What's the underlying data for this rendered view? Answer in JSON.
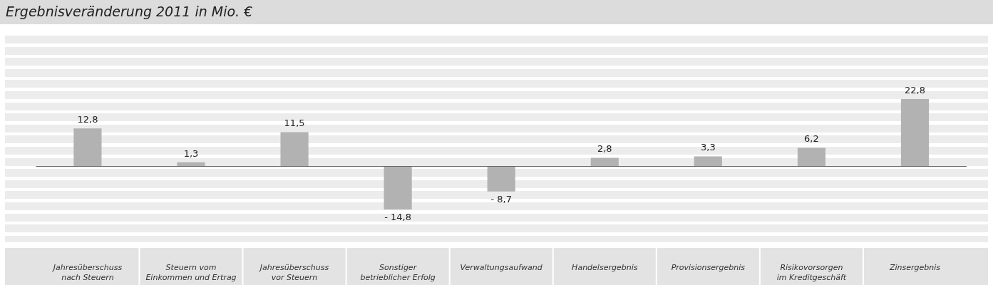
{
  "chart_data": {
    "type": "bar",
    "title": "Ergebnisveränderung 2011 in Mio. €",
    "categories": [
      "Jahresüberschuss\nnach Steuern",
      "Steuern vom\nEinkommen und Ertrag",
      "Jahresüberschuss\nvor Steuern",
      "Sonstiger\nbetrieblicher Erfolg",
      "Verwaltungsaufwand",
      "Handelsergebnis",
      "Provisionsergebnis",
      "Risikovorsorgen\nim Kreditgeschäft",
      "Zinsergebnis"
    ],
    "values": [
      12.8,
      1.3,
      11.5,
      -14.8,
      -8.7,
      2.8,
      3.3,
      6.2,
      22.8
    ],
    "value_labels": [
      "12,8",
      "1,3",
      "11,5",
      "- 14,8",
      "- 8,7",
      "2,8",
      "3,3",
      "6,2",
      "22,8"
    ],
    "color": "#b2b2b2",
    "grid": false,
    "legend": false
  }
}
